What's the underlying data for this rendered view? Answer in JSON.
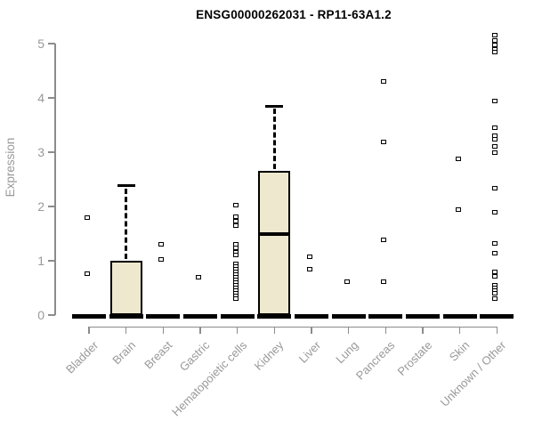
{
  "title": "ENSG00000262031 - RP11-63A1.2",
  "chart_data": {
    "type": "boxplot",
    "title": "ENSG00000262031 - RP11-63A1.2",
    "xlabel": "",
    "ylabel": "Expression",
    "ylim": [
      0,
      5.2
    ],
    "yticks": [
      0,
      1,
      2,
      3,
      4,
      5
    ],
    "grid": false,
    "legend": false,
    "colors": {
      "box_fill": "#EDE8CE",
      "box_stroke": "#000000",
      "axis": "#8c8c8c",
      "labels": "#999999",
      "title": "#000000"
    },
    "categories": [
      "Bladder",
      "Brain",
      "Breast",
      "Gastric",
      "Hematopoietic cells",
      "Kidney",
      "Liver",
      "Lung",
      "Pancreas",
      "Prostate",
      "Skin",
      "Unknown / Other"
    ],
    "series": [
      {
        "category": "Bladder",
        "q1": 0,
        "median": 0,
        "q3": 0,
        "whisker_low": 0,
        "whisker_high": 0,
        "outliers": [
          1.8,
          0.76
        ]
      },
      {
        "category": "Brain",
        "q1": 0,
        "median": 0,
        "q3": 1.0,
        "whisker_low": 0,
        "whisker_high": 2.38,
        "outliers": []
      },
      {
        "category": "Breast",
        "q1": 0,
        "median": 0,
        "q3": 0,
        "whisker_low": 0,
        "whisker_high": 0,
        "outliers": [
          1.3,
          1.03
        ]
      },
      {
        "category": "Gastric",
        "q1": 0,
        "median": 0,
        "q3": 0,
        "whisker_low": 0,
        "whisker_high": 0,
        "outliers": [
          0.7
        ]
      },
      {
        "category": "Hematopoietic cells",
        "q1": 0,
        "median": 0,
        "q3": 0,
        "whisker_low": 0,
        "whisker_high": 0,
        "outliers": [
          2.02,
          1.81,
          1.73,
          1.65,
          1.3,
          1.23,
          1.16,
          1.1,
          0.95,
          0.9,
          0.85,
          0.8,
          0.75,
          0.7,
          0.65,
          0.6,
          0.55,
          0.5,
          0.45,
          0.4,
          0.35,
          0.31
        ]
      },
      {
        "category": "Kidney",
        "q1": 0,
        "median": 1.5,
        "q3": 2.65,
        "whisker_low": 0,
        "whisker_high": 3.85,
        "outliers": []
      },
      {
        "category": "Liver",
        "q1": 0,
        "median": 0,
        "q3": 0,
        "whisker_low": 0,
        "whisker_high": 0,
        "outliers": [
          1.07,
          0.85
        ]
      },
      {
        "category": "Lung",
        "q1": 0,
        "median": 0,
        "q3": 0,
        "whisker_low": 0,
        "whisker_high": 0,
        "outliers": [
          0.62
        ]
      },
      {
        "category": "Pancreas",
        "q1": 0,
        "median": 0,
        "q3": 0,
        "whisker_low": 0,
        "whisker_high": 0,
        "outliers": [
          4.3,
          3.19,
          1.38,
          0.62
        ]
      },
      {
        "category": "Prostate",
        "q1": 0,
        "median": 0,
        "q3": 0,
        "whisker_low": 0,
        "whisker_high": 0,
        "outliers": []
      },
      {
        "category": "Skin",
        "q1": 0,
        "median": 0,
        "q3": 0,
        "whisker_low": 0,
        "whisker_high": 0,
        "outliers": [
          2.87,
          1.94
        ]
      },
      {
        "category": "Unknown / Other",
        "q1": 0,
        "median": 0,
        "q3": 0,
        "whisker_low": 0,
        "whisker_high": 0,
        "outliers": [
          5.15,
          5.06,
          4.98,
          4.9,
          4.84,
          3.94,
          3.45,
          3.3,
          3.24,
          3.1,
          3.0,
          2.34,
          1.9,
          1.32,
          1.14,
          0.8,
          0.72,
          0.55,
          0.5,
          0.45,
          0.4,
          0.31
        ]
      }
    ]
  }
}
